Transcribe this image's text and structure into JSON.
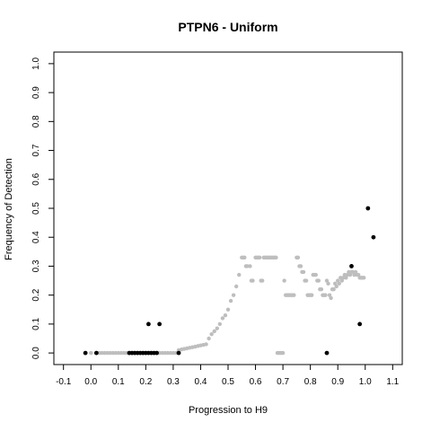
{
  "chart_data": {
    "type": "scatter",
    "title": "PTPN6 - Uniform",
    "xlabel": "Progression to H9",
    "ylabel": "Frequency of Detection",
    "xlim": [
      -0.135,
      1.135
    ],
    "ylim": [
      -0.04,
      1.04
    ],
    "x_ticks": [
      "-0.1",
      "0.0",
      "0.1",
      "0.2",
      "0.3",
      "0.4",
      "0.5",
      "0.6",
      "0.7",
      "0.8",
      "0.9",
      "1.0",
      "1.1"
    ],
    "y_ticks": [
      "0.0",
      "0.1",
      "0.2",
      "0.3",
      "0.4",
      "0.5",
      "0.6",
      "0.7",
      "0.8",
      "0.9",
      "1.0"
    ],
    "grid": false,
    "colors": {
      "background_series": "#bebebe",
      "highlight_series": "#000000"
    },
    "series": [
      {
        "points": [
          [
            0.0,
            0.0
          ],
          [
            0.02,
            0.0
          ],
          [
            0.03,
            0.0
          ],
          [
            0.04,
            0.0
          ],
          [
            0.05,
            0.0
          ],
          [
            0.06,
            0.0
          ],
          [
            0.07,
            0.0
          ],
          [
            0.08,
            0.0
          ],
          [
            0.09,
            0.0
          ],
          [
            0.1,
            0.0
          ],
          [
            0.11,
            0.0
          ],
          [
            0.12,
            0.0
          ],
          [
            0.13,
            0.0
          ],
          [
            0.14,
            0.0
          ],
          [
            0.15,
            0.0
          ],
          [
            0.16,
            0.0
          ],
          [
            0.17,
            0.0
          ],
          [
            0.18,
            0.0
          ],
          [
            0.19,
            0.0
          ],
          [
            0.2,
            0.0
          ],
          [
            0.21,
            0.0
          ],
          [
            0.22,
            0.0
          ],
          [
            0.23,
            0.0
          ],
          [
            0.24,
            0.0
          ],
          [
            0.25,
            0.0
          ],
          [
            0.26,
            0.0
          ],
          [
            0.27,
            0.0
          ],
          [
            0.28,
            0.0
          ],
          [
            0.29,
            0.0
          ],
          [
            0.3,
            0.0
          ],
          [
            0.31,
            0.0
          ],
          [
            0.32,
            0.01
          ],
          [
            0.33,
            0.012
          ],
          [
            0.34,
            0.014
          ],
          [
            0.35,
            0.016
          ],
          [
            0.36,
            0.018
          ],
          [
            0.37,
            0.02
          ],
          [
            0.38,
            0.022
          ],
          [
            0.39,
            0.024
          ],
          [
            0.4,
            0.026
          ],
          [
            0.41,
            0.028
          ],
          [
            0.42,
            0.03
          ],
          [
            0.43,
            0.05
          ],
          [
            0.44,
            0.065
          ],
          [
            0.45,
            0.075
          ],
          [
            0.46,
            0.085
          ],
          [
            0.47,
            0.1
          ],
          [
            0.48,
            0.12
          ],
          [
            0.49,
            0.13
          ],
          [
            0.5,
            0.15
          ],
          [
            0.51,
            0.18
          ],
          [
            0.52,
            0.2
          ],
          [
            0.53,
            0.23
          ],
          [
            0.54,
            0.27
          ],
          [
            0.55,
            0.33
          ],
          [
            0.555,
            0.33
          ],
          [
            0.56,
            0.33
          ],
          [
            0.565,
            0.3
          ],
          [
            0.57,
            0.3
          ],
          [
            0.58,
            0.3
          ],
          [
            0.585,
            0.25
          ],
          [
            0.59,
            0.25
          ],
          [
            0.6,
            0.33
          ],
          [
            0.605,
            0.33
          ],
          [
            0.61,
            0.33
          ],
          [
            0.615,
            0.33
          ],
          [
            0.62,
            0.25
          ],
          [
            0.625,
            0.25
          ],
          [
            0.63,
            0.33
          ],
          [
            0.635,
            0.33
          ],
          [
            0.64,
            0.33
          ],
          [
            0.645,
            0.33
          ],
          [
            0.65,
            0.33
          ],
          [
            0.655,
            0.33
          ],
          [
            0.66,
            0.33
          ],
          [
            0.665,
            0.33
          ],
          [
            0.67,
            0.33
          ],
          [
            0.675,
            0.33
          ],
          [
            0.68,
            0.0
          ],
          [
            0.685,
            0.0
          ],
          [
            0.69,
            0.0
          ],
          [
            0.695,
            0.0
          ],
          [
            0.7,
            0.0
          ],
          [
            0.705,
            0.25
          ],
          [
            0.71,
            0.2
          ],
          [
            0.715,
            0.2
          ],
          [
            0.72,
            0.2
          ],
          [
            0.725,
            0.2
          ],
          [
            0.73,
            0.2
          ],
          [
            0.735,
            0.2
          ],
          [
            0.74,
            0.2
          ],
          [
            0.75,
            0.33
          ],
          [
            0.755,
            0.33
          ],
          [
            0.76,
            0.3
          ],
          [
            0.765,
            0.3
          ],
          [
            0.77,
            0.28
          ],
          [
            0.775,
            0.28
          ],
          [
            0.78,
            0.25
          ],
          [
            0.785,
            0.25
          ],
          [
            0.79,
            0.2
          ],
          [
            0.795,
            0.2
          ],
          [
            0.8,
            0.2
          ],
          [
            0.805,
            0.2
          ],
          [
            0.81,
            0.27
          ],
          [
            0.815,
            0.27
          ],
          [
            0.82,
            0.27
          ],
          [
            0.825,
            0.25
          ],
          [
            0.83,
            0.25
          ],
          [
            0.835,
            0.22
          ],
          [
            0.84,
            0.22
          ],
          [
            0.845,
            0.2
          ],
          [
            0.85,
            0.2
          ],
          [
            0.855,
            0.2
          ],
          [
            0.86,
            0.25
          ],
          [
            0.865,
            0.24
          ],
          [
            0.87,
            0.2
          ],
          [
            0.875,
            0.19
          ],
          [
            0.88,
            0.22
          ],
          [
            0.885,
            0.22
          ],
          [
            0.89,
            0.24
          ],
          [
            0.895,
            0.23
          ],
          [
            0.9,
            0.25
          ],
          [
            0.905,
            0.24
          ],
          [
            0.91,
            0.26
          ],
          [
            0.915,
            0.25
          ],
          [
            0.92,
            0.26
          ],
          [
            0.925,
            0.27
          ],
          [
            0.93,
            0.26
          ],
          [
            0.935,
            0.27
          ],
          [
            0.94,
            0.28
          ],
          [
            0.945,
            0.27
          ],
          [
            0.95,
            0.28
          ],
          [
            0.955,
            0.28
          ],
          [
            0.96,
            0.27
          ],
          [
            0.965,
            0.28
          ],
          [
            0.97,
            0.27
          ],
          [
            0.975,
            0.27
          ],
          [
            0.98,
            0.26
          ],
          [
            0.985,
            0.26
          ],
          [
            0.99,
            0.26
          ],
          [
            0.995,
            0.26
          ]
        ]
      },
      {
        "points": [
          [
            -0.02,
            0.0
          ],
          [
            0.02,
            0.0
          ],
          [
            0.14,
            0.0
          ],
          [
            0.15,
            0.0
          ],
          [
            0.16,
            0.0
          ],
          [
            0.17,
            0.0
          ],
          [
            0.18,
            0.0
          ],
          [
            0.19,
            0.0
          ],
          [
            0.2,
            0.0
          ],
          [
            0.21,
            0.0
          ],
          [
            0.22,
            0.0
          ],
          [
            0.23,
            0.0
          ],
          [
            0.24,
            0.0
          ],
          [
            0.32,
            0.0
          ],
          [
            0.21,
            0.1
          ],
          [
            0.25,
            0.1
          ],
          [
            0.86,
            0.0
          ],
          [
            0.95,
            0.3
          ],
          [
            0.98,
            0.1
          ],
          [
            1.01,
            0.5
          ],
          [
            1.03,
            0.4
          ]
        ]
      }
    ]
  }
}
